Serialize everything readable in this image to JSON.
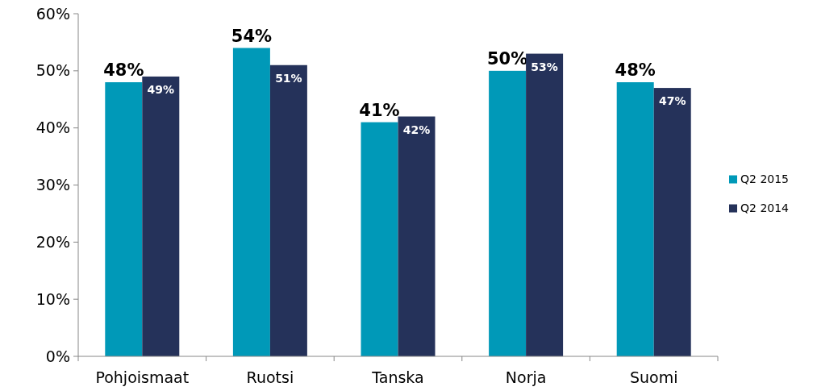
{
  "chart_data": {
    "type": "bar",
    "categories": [
      "Pohjoismaat",
      "Ruotsi",
      "Tanska",
      "Norja",
      "Suomi"
    ],
    "series": [
      {
        "name": "Q2 2015",
        "color": "#0099b8",
        "values": [
          48,
          54,
          41,
          50,
          48
        ],
        "value_labels": [
          "48%",
          "54%",
          "41%",
          "50%",
          "48%"
        ]
      },
      {
        "name": "Q2 2014",
        "color": "#25325a",
        "values": [
          49,
          51,
          42,
          53,
          47
        ],
        "value_labels": [
          "49%",
          "51%",
          "42%",
          "53%",
          "47%"
        ]
      }
    ],
    "ylim": [
      0,
      60
    ],
    "yticks": [
      {
        "value": 0,
        "label": "0%"
      },
      {
        "value": 10,
        "label": "10%"
      },
      {
        "value": 20,
        "label": "20%"
      },
      {
        "value": 30,
        "label": "30%"
      },
      {
        "value": 40,
        "label": "40%"
      },
      {
        "value": 50,
        "label": "50%"
      },
      {
        "value": 60,
        "label": "60%"
      }
    ],
    "grid": false,
    "legend": "right"
  }
}
